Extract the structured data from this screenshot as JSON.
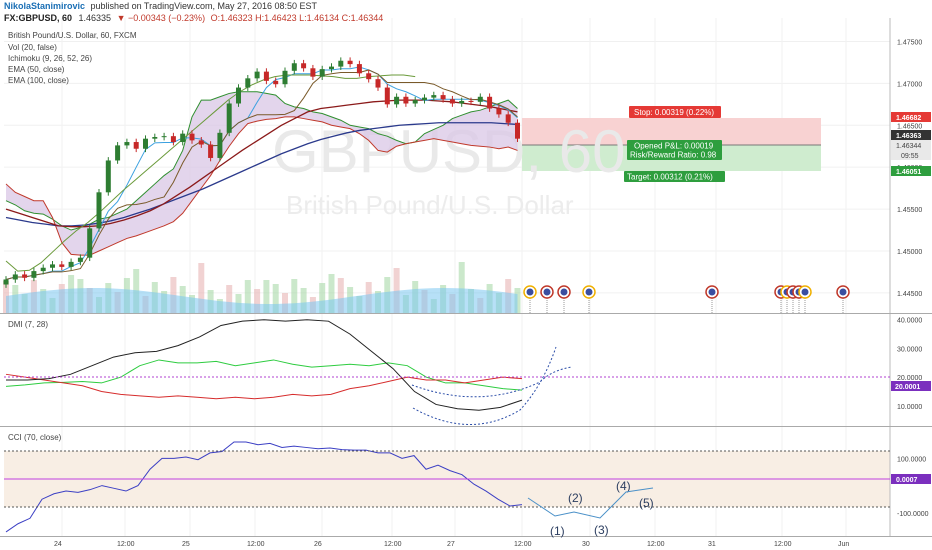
{
  "header": {
    "author": "NikolaStanimirovic",
    "published": "published on TradingView.com, May 27, 2016 08:50 EST",
    "symbol": "FX:GBPUSD, 60",
    "last": "1.46335",
    "change": "▼ −0.00343 (−0.23%)",
    "ohlc": "O:1.46323 H:1.46423 L:1.46134 C:1.46344"
  },
  "legend": {
    "title": "British Pound/U.S. Dollar, 60, FXCM",
    "vol": "Vol (20, false)",
    "ichimoku": "Ichimoku (9, 26, 52, 26)",
    "ema50": "EMA (50, close)",
    "ema100": "EMA (100, close)"
  },
  "watermark": {
    "symbol": "GBPUSD, 60",
    "name": "British Pound/U.S. Dollar"
  },
  "trade": {
    "stop": "Stop: 0.00319 (0.22%)",
    "opened": "Opened P&L: 0.00019",
    "rr": "Risk/Reward Ratio: 0.98",
    "target": "Target: 0.00312 (0.21%)"
  },
  "colors": {
    "up": "#2e7d32",
    "down": "#c62828",
    "ema50": "#8b1a1a",
    "ema100": "#2b3a8c",
    "senkou_a": "#2f8f2f",
    "senkou_b": "#c0392b",
    "tenkan": "#3ba1e0",
    "kijun": "#7a5a2a",
    "chikou": "#6a9a3a",
    "cloud": "#d9c7e6",
    "stop_zone": "#f8d2d2",
    "target_zone": "#cfeccf",
    "di_plus": "#2ecc40",
    "di_minus": "#d62c2c",
    "adx": "#222222",
    "cci": "#3b3fc4"
  },
  "price_axis": {
    "ticks": [
      "1.47500",
      "1.47000",
      "1.46500",
      "1.46000",
      "1.45500",
      "1.45000",
      "1.44500"
    ],
    "tags": {
      "stop": "1.46682",
      "last": "1.46363",
      "entry": "1.46344",
      "time": "09:55",
      "target": "1.46051"
    }
  },
  "dmi": {
    "title": "DMI (7, 28)",
    "ticks": [
      "40.0000",
      "30.0000",
      "20.0000",
      "10.0000"
    ],
    "level_tag": "20.0001",
    "level": 20
  },
  "cci": {
    "title": "CCI (70, close)",
    "ticks": [
      "100.0000",
      "-100.0000"
    ],
    "value_tag": "0.0007"
  },
  "time_axis": [
    "24",
    "12:00",
    "25",
    "12:00",
    "26",
    "12:00",
    "27",
    "12:00",
    "30",
    "12:00",
    "31",
    "12:00",
    "Jun"
  ],
  "waves": [
    "(1)",
    "(2)",
    "(3)",
    "(4)",
    "(5)"
  ],
  "chart_data": [
    {
      "type": "line",
      "title": "British Pound/U.S. Dollar, 60, FXCM",
      "ylim": [
        1.4426,
        1.4778
      ],
      "series": [
        {
          "name": "Price (close)",
          "values": [
            1.4466,
            1.4472,
            1.4468,
            1.4476,
            1.448,
            1.4484,
            1.4481,
            1.4487,
            1.4492,
            1.4527,
            1.457,
            1.4608,
            1.4626,
            1.463,
            1.4622,
            1.4634,
            1.4636,
            1.4637,
            1.463,
            1.464,
            1.4632,
            1.4627,
            1.4611,
            1.4641,
            1.4676,
            1.4695,
            1.4706,
            1.4714,
            1.4703,
            1.4699,
            1.4715,
            1.4724,
            1.4718,
            1.4708,
            1.4717,
            1.472,
            1.4727,
            1.4723,
            1.4712,
            1.4705,
            1.4695,
            1.4675,
            1.4684,
            1.4676,
            1.468,
            1.4683,
            1.4686,
            1.4681,
            1.4676,
            1.4679,
            1.4678,
            1.4684,
            1.467,
            1.4663,
            1.4653,
            1.4634
          ]
        },
        {
          "name": "EMA (50, close)",
          "values": [
            1.455,
            1.4545,
            1.454,
            1.4535,
            1.453,
            1.4529,
            1.4529,
            1.453,
            1.4533,
            1.4537,
            1.4542,
            1.4548,
            1.4556,
            1.4566,
            1.4576,
            1.4587,
            1.4598,
            1.4609,
            1.462,
            1.463,
            1.464,
            1.465,
            1.4658,
            1.4666,
            1.467,
            1.4672,
            1.4674,
            1.4676,
            1.4678,
            1.4679,
            1.468,
            1.468,
            1.468,
            1.4679,
            1.4678,
            1.4676,
            1.4674,
            1.4672,
            1.4669,
            1.4666
          ]
        },
        {
          "name": "EMA (100, close)",
          "values": [
            1.454,
            1.4537,
            1.4534,
            1.4532,
            1.453,
            1.453,
            1.4531,
            1.4533,
            1.4536,
            1.454,
            1.4545,
            1.455,
            1.4556,
            1.4562,
            1.4568,
            1.4574,
            1.4581,
            1.4588,
            1.4595,
            1.4602,
            1.4609,
            1.4616,
            1.4622,
            1.4628,
            1.4633,
            1.4637,
            1.4641,
            1.4644,
            1.4646,
            1.4648,
            1.465,
            1.4651,
            1.4652,
            1.4653,
            1.4653,
            1.4653,
            1.4653,
            1.4653,
            1.4652,
            1.4651
          ]
        },
        {
          "name": "Ichimoku (9, 26, 52, 26)",
          "values": [
            1.447,
            1.4458,
            1.4459,
            1.4468,
            1.4481,
            1.4494,
            1.4506,
            1.4516,
            1.4528,
            1.4541,
            1.4554,
            1.4566,
            1.4578,
            1.459,
            1.4602,
            1.4614,
            1.4626,
            1.4638,
            1.465,
            1.4662,
            1.4672,
            1.468,
            1.4686,
            1.469,
            1.4692,
            1.4692,
            1.4692,
            1.4691,
            1.469,
            1.4688,
            1.4688,
            1.469,
            1.4691,
            1.4692,
            1.4692,
            1.469
          ]
        }
      ]
    },
    {
      "type": "line",
      "title": "DMI (7, 28)",
      "ylim": [
        3,
        42
      ],
      "series": [
        {
          "name": "DI+",
          "values": [
            16.8,
            17.3,
            18.0,
            18.2,
            18.5,
            18.0,
            20.0,
            24.0,
            26.0,
            25.0,
            25.0,
            25.5,
            24.0,
            25.0,
            26.0,
            24.5,
            23.5,
            24.0,
            24.5,
            24.0,
            25.0,
            24.0,
            20.0,
            18.0,
            18.0,
            17.0,
            16.0,
            15.5
          ]
        },
        {
          "name": "DI−",
          "values": [
            21.0,
            20.0,
            19.0,
            18.0,
            17.0,
            15.0,
            14.0,
            13.5,
            13.0,
            13.5,
            13.0,
            12.5,
            13.0,
            12.5,
            13.0,
            14.0,
            13.5,
            14.0,
            16.0,
            17.0,
            18.5,
            20.0,
            19.0,
            19.0,
            18.0,
            19.0,
            20.0,
            19.5
          ]
        },
        {
          "name": "ADX",
          "values": [
            19.0,
            19.0,
            19.5,
            21.0,
            24.0,
            27.0,
            28.5,
            29.0,
            31.0,
            34.0,
            38.0,
            39.5,
            40.0,
            39.5,
            40.0,
            39.5,
            35.0,
            29.0,
            23.0,
            15.0,
            10.5,
            9.0,
            8.5,
            9.5,
            12.0
          ]
        }
      ]
    },
    {
      "type": "line",
      "title": "CCI (70, close)",
      "ylim": [
        -185,
        215
      ],
      "series": [
        {
          "name": "CCI",
          "values": [
            -170,
            -140,
            -120,
            -50,
            -30,
            -20,
            -25,
            -15,
            0,
            -10,
            -20,
            0,
            60,
            100,
            100,
            105,
            95,
            120,
            125,
            160,
            160,
            150,
            155,
            140,
            145,
            140,
            135,
            138,
            132,
            130,
            130,
            120,
            120,
            100,
            110,
            60,
            75,
            55,
            40,
            5,
            -20,
            -50,
            -75,
            -70
          ]
        }
      ]
    }
  ]
}
